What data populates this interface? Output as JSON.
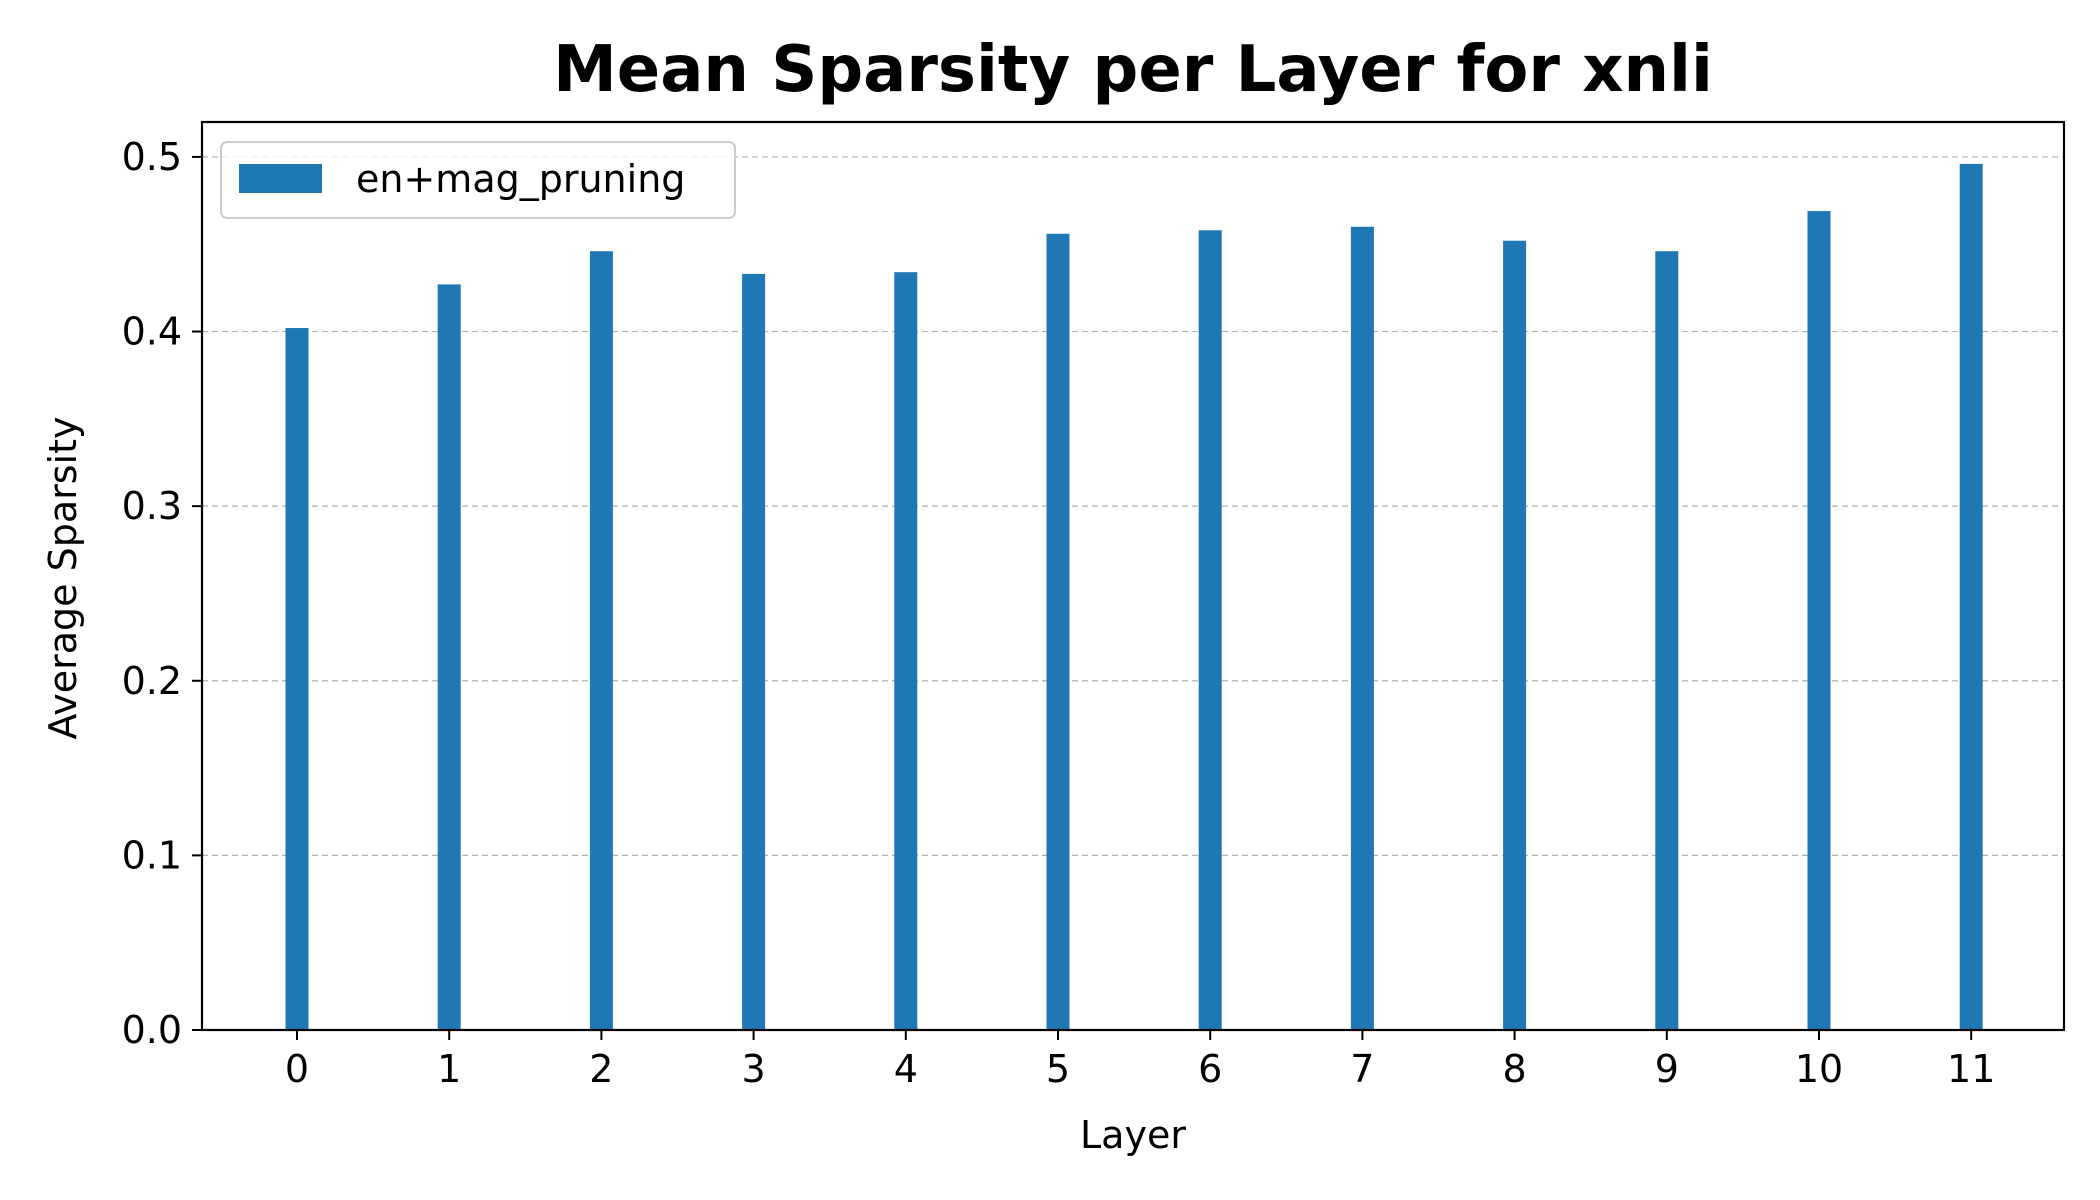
{
  "chart_data": {
    "type": "bar",
    "title": "Mean Sparsity per Layer for xnli",
    "xlabel": "Layer",
    "ylabel": "Average Sparsity",
    "categories": [
      "0",
      "1",
      "2",
      "3",
      "4",
      "5",
      "6",
      "7",
      "8",
      "9",
      "10",
      "11"
    ],
    "series": [
      {
        "name": "en+mag_pruning",
        "color": "#1f77b4",
        "values": [
          0.402,
          0.427,
          0.446,
          0.433,
          0.434,
          0.456,
          0.458,
          0.46,
          0.452,
          0.446,
          0.469,
          0.496
        ]
      }
    ],
    "ylim": [
      0,
      0.52
    ],
    "yticks": [
      "0.0",
      "0.1",
      "0.2",
      "0.3",
      "0.4",
      "0.5"
    ],
    "grid": "y, dashed",
    "legend_position": "top-left"
  }
}
